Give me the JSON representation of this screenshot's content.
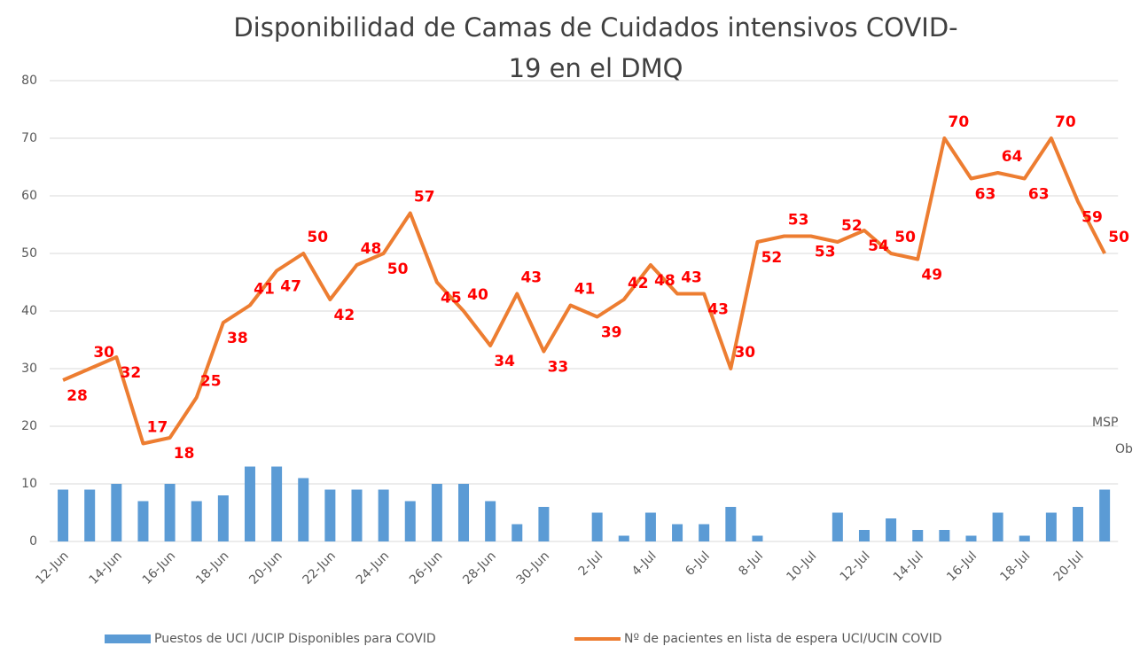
{
  "chart_data": {
    "type": "bar-line",
    "title": "Disponibilidad de Camas de Cuidados intensivos COVID-19 en el DMQ",
    "categories": [
      "12-Jun",
      null,
      "14-Jun",
      null,
      "16-Jun",
      null,
      "18-Jun",
      null,
      "20-Jun",
      null,
      "22-Jun",
      null,
      "24-Jun",
      null,
      "26-Jun",
      null,
      "28-Jun",
      null,
      "30-Jun",
      null,
      "2-Jul",
      null,
      "4-Jul",
      null,
      "6-Jul",
      null,
      "8-Jul",
      null,
      "10-Jul",
      null,
      "12-Jul",
      null,
      "14-Jul",
      null,
      "16-Jul",
      null,
      "18-Jul",
      null,
      "20-Jul",
      null
    ],
    "series": [
      {
        "name": "Puestos de UCI /UCIP Disponibles para COVID",
        "type": "bar",
        "color": "#5b9bd5",
        "values": [
          9,
          9,
          10,
          7,
          10,
          7,
          8,
          13,
          13,
          11,
          9,
          9,
          9,
          7,
          10,
          10,
          7,
          3,
          6,
          0,
          5,
          1,
          5,
          3,
          3,
          6,
          1,
          0,
          0,
          5,
          2,
          4,
          2,
          2,
          1,
          5,
          1,
          5,
          6,
          9
        ]
      },
      {
        "name": "Nº de pacientes en lista de espera UCI/UCIN COVID",
        "type": "line",
        "color": "#ed7d31",
        "values": [
          28,
          30,
          32,
          17,
          18,
          25,
          38,
          41,
          47,
          50,
          42,
          48,
          50,
          57,
          45,
          40,
          34,
          43,
          33,
          41,
          39,
          42,
          48,
          43,
          43,
          30,
          52,
          53,
          53,
          52,
          54,
          50,
          49,
          70,
          63,
          64,
          63,
          70,
          59,
          50
        ]
      }
    ],
    "ylim": [
      0,
      80
    ],
    "yticks": [
      0,
      10,
      20,
      30,
      40,
      50,
      60,
      70,
      80
    ],
    "grid": true,
    "annotations": [
      "MSP",
      "Ob"
    ]
  }
}
